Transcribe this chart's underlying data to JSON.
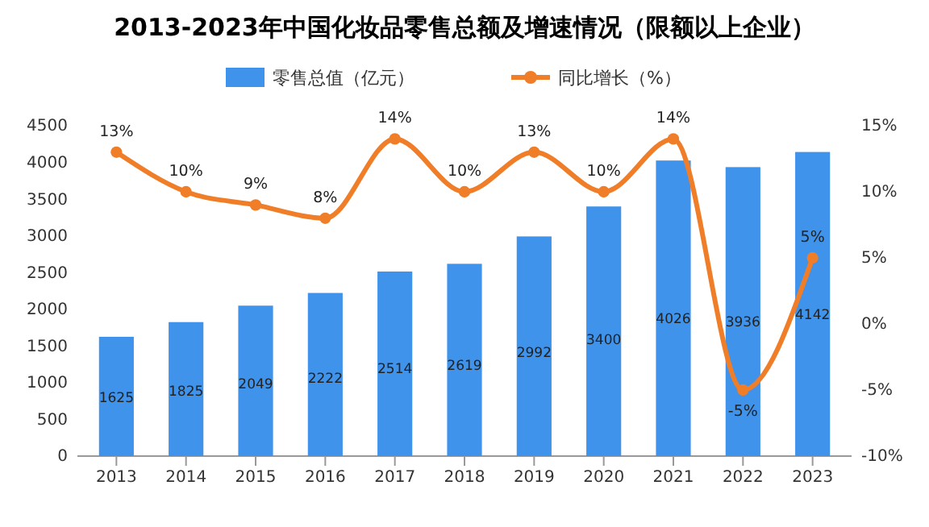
{
  "chart_data": {
    "type": "bar",
    "title": "2013-2023年中国化妆品零售总额及增速情况（限额以上企业）",
    "categories": [
      "2013",
      "2014",
      "2015",
      "2016",
      "2017",
      "2018",
      "2019",
      "2020",
      "2021",
      "2022",
      "2023"
    ],
    "series": [
      {
        "name": "零售总值（亿元）",
        "color": "#3f93ea",
        "values": [
          1625,
          1825,
          2049,
          2222,
          2514,
          2619,
          2992,
          3400,
          4026,
          3936,
          4142
        ]
      },
      {
        "name": "同比增长（%）",
        "type": "line",
        "axis": "y2",
        "color": "#f07d28",
        "values": [
          13,
          10,
          9,
          8,
          14,
          10,
          13,
          10,
          14,
          -5,
          5
        ],
        "value_labels": [
          "13%",
          "10%",
          "9%",
          "8%",
          "14%",
          "10%",
          "13%",
          "10%",
          "14%",
          "-5%",
          "5%"
        ]
      }
    ],
    "ylim": [
      0,
      4500
    ],
    "yticks": [
      0,
      500,
      1000,
      1500,
      2000,
      2500,
      3000,
      3500,
      4000,
      4500
    ],
    "y2lim": [
      -10,
      15
    ],
    "y2ticks": [
      {
        "value": -10,
        "label": "-10%"
      },
      {
        "value": -5,
        "label": "-5%"
      },
      {
        "value": 0,
        "label": "0%"
      },
      {
        "value": 5,
        "label": "5%"
      },
      {
        "value": 10,
        "label": "10%"
      },
      {
        "value": 15,
        "label": "15%"
      }
    ],
    "data_labels": true,
    "legend": "top",
    "marker": "circle",
    "line_style": "solid"
  }
}
